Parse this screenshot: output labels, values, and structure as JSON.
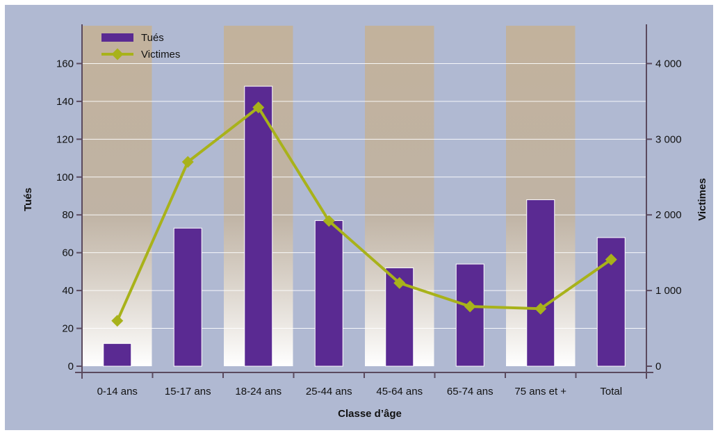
{
  "chart_data": {
    "type": "bar",
    "xlabel": "Classe d’âge",
    "ylabel": "Tués",
    "y2label": "Victimes",
    "categories": [
      "0-14 ans",
      "15-17 ans",
      "18-24 ans",
      "25-44 ans",
      "45-64 ans",
      "65-74 ans",
      "75 ans et +",
      "Total"
    ],
    "series": [
      {
        "name": "Tués",
        "type": "bar",
        "axis": "left",
        "values": [
          12,
          73,
          148,
          77,
          52,
          54,
          88,
          68
        ]
      },
      {
        "name": "Victimes",
        "type": "line",
        "axis": "right",
        "values": [
          600,
          2700,
          3420,
          1920,
          1100,
          790,
          760,
          1410
        ]
      }
    ],
    "ylim": [
      0,
      180
    ],
    "y2lim": [
      0,
      4500
    ],
    "yticks": [
      0,
      20,
      40,
      60,
      80,
      100,
      120,
      140,
      160
    ],
    "y2ticks": [
      0,
      1000,
      2000,
      3000,
      4000
    ],
    "ytick_labels": [
      "0",
      "20",
      "40",
      "60",
      "80",
      "100",
      "120",
      "140",
      "160"
    ],
    "y2tick_labels": [
      "0",
      "1 000",
      "2 000",
      "3 000",
      "4 000"
    ],
    "shaded_categories": [
      0,
      2,
      4,
      6
    ],
    "grid": true,
    "legend_position": "top-left",
    "colors": {
      "background": "#b0b9d2",
      "bar": "#5a2a92",
      "line": "#a8b21a",
      "band_top": "#c2b29c",
      "band_bottom": "#ffffff",
      "axis": "#5a4a5e"
    }
  }
}
